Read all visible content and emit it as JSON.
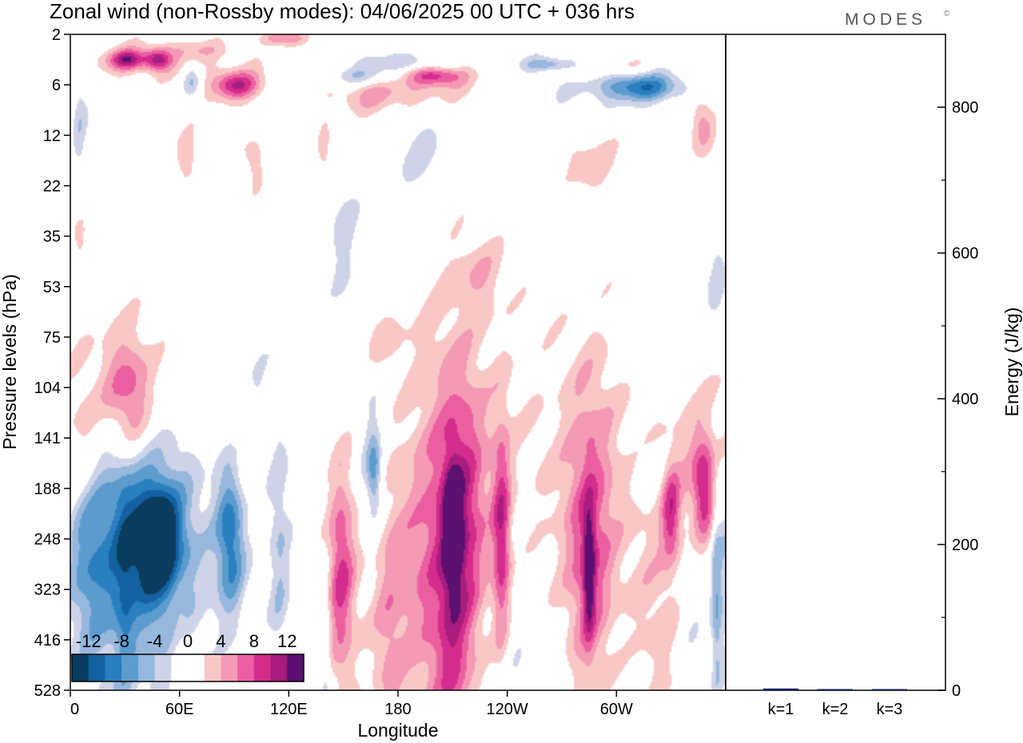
{
  "header": {
    "title": "Zonal wind (non-Rossby modes):  04/06/2025  00 UTC  + 036 hrs",
    "logo": "MODES",
    "logo_mark": "©"
  },
  "chart_data": [
    {
      "type": "heatmap",
      "name": "zonal-wind-section",
      "title": "Zonal wind (non-Rossby modes):  04/06/2025  00 UTC  + 036 hrs",
      "xlabel": "Longitude",
      "ylabel": "Pressure levels (hPa)",
      "x_ticks": [
        "0",
        "60E",
        "120E",
        "180",
        "120W",
        "60W"
      ],
      "x_tick_lon": [
        0,
        60,
        120,
        180,
        240,
        300
      ],
      "xlim": [
        0,
        360
      ],
      "y_ticks": [
        "2",
        "6",
        "12",
        "22",
        "35",
        "53",
        "75",
        "104",
        "141",
        "188",
        "248",
        "323",
        "416",
        "528"
      ],
      "y_reversed": true,
      "colorbar": {
        "labels": [
          "-12",
          "-8",
          "-4",
          "0",
          "4",
          "8",
          "12"
        ],
        "levels": [
          -14,
          -12,
          -10,
          -8,
          -6,
          -4,
          -2,
          0,
          2,
          4,
          6,
          8,
          10,
          12,
          14
        ],
        "colors": [
          "#0b3c5d",
          "#1361a0",
          "#2a7fbf",
          "#5b9bcd",
          "#97b7dc",
          "#cfd3e7",
          "#ffffff",
          "#ffffff",
          "#f9c8c6",
          "#f49ab5",
          "#eb5fa0",
          "#d42c8c",
          "#a71c7d",
          "#5c1070"
        ]
      },
      "blobs": [
        {
          "lon": 31,
          "lev": 2,
          "dlon": 9,
          "dlev": 0.18,
          "v": 8
        },
        {
          "lon": 48,
          "lev": 2,
          "dlon": 7,
          "dlev": 0.2,
          "v": 8
        },
        {
          "lon": 38,
          "lev": 2.1,
          "dlon": 28,
          "dlev": 0.35,
          "v": 4
        },
        {
          "lon": 70,
          "lev": 1.2,
          "dlon": 20,
          "dlev": 0.2,
          "v": 3
        },
        {
          "lon": 117,
          "lev": 0.3,
          "dlon": 12,
          "dlev": 0.15,
          "v": 6
        },
        {
          "lon": 91,
          "lev": 4,
          "dlon": 12,
          "dlev": 0.25,
          "v": 7
        },
        {
          "lon": 91,
          "lev": 4,
          "dlon": 22,
          "dlev": 0.5,
          "v": 3
        },
        {
          "lon": 67,
          "lev": 3.7,
          "dlon": 5,
          "dlev": 0.3,
          "v": -5
        },
        {
          "lon": 160,
          "lev": 3.4,
          "dlon": 22,
          "dlev": 0.2,
          "v": -5
        },
        {
          "lon": 185,
          "lev": 2.3,
          "dlon": 25,
          "dlev": 0.2,
          "v": -5
        },
        {
          "lon": 190,
          "lev": 4,
          "dlon": 40,
          "dlev": 0.4,
          "v": 3
        },
        {
          "lon": 200,
          "lev": 3.2,
          "dlon": 15,
          "dlev": 0.2,
          "v": 8
        },
        {
          "lon": 165,
          "lev": 5,
          "dlon": 25,
          "dlev": 0.4,
          "v": 3
        },
        {
          "lon": 265,
          "lev": 2.4,
          "dlon": 16,
          "dlev": 0.15,
          "v": -6
        },
        {
          "lon": 315,
          "lev": 4.2,
          "dlon": 20,
          "dlev": 0.25,
          "v": -7
        },
        {
          "lon": 300,
          "lev": 4,
          "dlon": 40,
          "dlev": 0.5,
          "v": -3
        },
        {
          "lon": 295,
          "lev": 2.5,
          "dlon": 25,
          "dlev": 0.2,
          "v": 4
        },
        {
          "lon": 275,
          "lev": 3.2,
          "dlon": 10,
          "dlev": 0.15,
          "v": 3
        },
        {
          "lon": 345,
          "lev": 6,
          "dlon": 6,
          "dlev": 0.5,
          "v": 3
        },
        {
          "lon": 5,
          "lev": 7,
          "dlon": 4,
          "dlev": 1.2,
          "v": -3
        },
        {
          "lon": 65,
          "lev": 10,
          "dlon": 8,
          "dlev": 0.6,
          "v": 3
        },
        {
          "lon": 100,
          "lev": 10,
          "dlon": 8,
          "dlev": 0.6,
          "v": 3
        },
        {
          "lon": 140,
          "lev": 10,
          "dlon": 4,
          "dlev": 0.8,
          "v": 3
        },
        {
          "lon": 195,
          "lev": 10,
          "dlon": 15,
          "dlev": 0.9,
          "v": -3
        },
        {
          "lon": 285,
          "lev": 10,
          "dlon": 15,
          "dlev": 0.7,
          "v": 3
        },
        {
          "lon": 350,
          "lev": 8.5,
          "dlon": 7,
          "dlev": 0.6,
          "v": 3
        },
        {
          "lon": 150,
          "lev": 16,
          "dlon": 8,
          "dlev": 1.4,
          "v": -3
        },
        {
          "lon": 225,
          "lev": 19,
          "dlon": 14,
          "dlev": 0.8,
          "v": 3
        },
        {
          "lon": 355,
          "lev": 19,
          "dlon": 6,
          "dlev": 1.2,
          "v": -3
        },
        {
          "lon": 6,
          "lev": 17,
          "dlon": 5,
          "dlev": 0.6,
          "v": 3
        },
        {
          "lon": 170,
          "lev": 24,
          "dlon": 15,
          "dlev": 0.6,
          "v": 3
        },
        {
          "lon": 25,
          "lev": 28,
          "dlon": 30,
          "dlev": 1.5,
          "v": 3
        },
        {
          "lon": 32,
          "lev": 29,
          "dlon": 12,
          "dlev": 1.2,
          "v": 6
        },
        {
          "lon": 8,
          "lev": 33,
          "dlon": 8,
          "dlev": 1.2,
          "v": 3
        },
        {
          "lon": 100,
          "lev": 29,
          "dlon": 10,
          "dlev": 1,
          "v": -3
        },
        {
          "lon": 95,
          "lev": 31,
          "dlon": 8,
          "dlev": 1.2,
          "v": 3
        },
        {
          "lon": 165,
          "lev": 34,
          "dlon": 8,
          "dlev": 2,
          "v": -3
        },
        {
          "lon": 167,
          "lev": 35,
          "dlon": 4,
          "dlev": 0.8,
          "v": -6
        },
        {
          "lon": 318,
          "lev": 35,
          "dlon": 8,
          "dlev": 0.6,
          "v": -3
        },
        {
          "lon": 345,
          "lev": 35.5,
          "dlon": 14,
          "dlev": 1.6,
          "v": 4
        },
        {
          "lon": 348,
          "lev": 36,
          "dlon": 6,
          "dlev": 1,
          "v": 7
        },
        {
          "lon": 330,
          "lev": 38,
          "dlon": 5,
          "dlev": 0.9,
          "v": 7
        },
        {
          "lon": 230,
          "lev": 39,
          "dlon": 40,
          "dlev": 4,
          "v": 3
        },
        {
          "lon": 290,
          "lev": 40,
          "dlon": 28,
          "dlev": 4,
          "v": 3
        },
        {
          "lon": 180,
          "lev": 42,
          "dlon": 25,
          "dlev": 2.5,
          "v": 3
        },
        {
          "lon": 150,
          "lev": 43,
          "dlon": 8,
          "dlev": 2.5,
          "v": 3
        },
        {
          "lon": 42,
          "lev": 40,
          "dlon": 35,
          "dlev": 2,
          "v": -4
        },
        {
          "lon": 48,
          "lev": 40,
          "dlon": 12,
          "dlev": 1,
          "v": -13
        },
        {
          "lon": 25,
          "lev": 41,
          "dlon": 22,
          "dlev": 2.5,
          "v": -6
        },
        {
          "lon": 88,
          "lev": 40,
          "dlon": 8,
          "dlev": 1.5,
          "v": -9
        },
        {
          "lon": 115,
          "lev": 41,
          "dlon": 6,
          "dlev": 2.5,
          "v": -4
        },
        {
          "lon": 8,
          "lev": 42,
          "dlon": 10,
          "dlev": 2,
          "v": -3
        },
        {
          "lon": 55,
          "lev": 44,
          "dlon": 18,
          "dlev": 3,
          "v": -3
        },
        {
          "lon": 215,
          "lev": 38.5,
          "dlon": 13,
          "dlev": 3,
          "v": 7
        },
        {
          "lon": 210,
          "lev": 39,
          "dlon": 5,
          "dlev": 1.2,
          "v": 9
        },
        {
          "lon": 237,
          "lev": 40.5,
          "dlon": 5,
          "dlev": 2.2,
          "v": 9
        },
        {
          "lon": 285,
          "lev": 42,
          "dlon": 13,
          "dlev": 3.3,
          "v": 7
        },
        {
          "lon": 285,
          "lev": 42.5,
          "dlon": 3,
          "dlev": 1.2,
          "v": 9
        },
        {
          "lon": 148,
          "lev": 43,
          "dlon": 7,
          "dlev": 2,
          "v": 5
        },
        {
          "lon": 200,
          "lev": 45,
          "dlon": 15,
          "dlev": 6,
          "v": 3
        },
        {
          "lon": 240,
          "lev": 47,
          "dlon": 15,
          "dlev": 3,
          "v": -3
        },
        {
          "lon": 325,
          "lev": 45,
          "dlon": 20,
          "dlev": 3,
          "v": 3
        },
        {
          "lon": 340,
          "lev": 44,
          "dlon": 8,
          "dlev": 2,
          "v": -3
        },
        {
          "lon": 60,
          "lev": 51,
          "dlon": 6,
          "dlev": 2,
          "v": 3
        },
        {
          "lon": 285,
          "lev": 51,
          "dlon": 30,
          "dlev": 4,
          "v": -3
        },
        {
          "lon": 355,
          "lev": 45,
          "dlon": 3,
          "dlev": 2,
          "v": -5
        },
        {
          "lon": 210,
          "lev": 50,
          "dlon": 8,
          "dlev": 2,
          "v": 3
        },
        {
          "lon": 175,
          "lev": 51,
          "dlon": 8,
          "dlev": 2.5,
          "v": 3
        },
        {
          "lon": 140,
          "lev": 49,
          "dlon": 3,
          "dlev": 1.5,
          "v": -3
        },
        {
          "lon": 30,
          "lev": 47,
          "dlon": 5,
          "dlev": 3,
          "v": -3
        }
      ]
    },
    {
      "type": "bar",
      "name": "energy-spectrum",
      "categories": [
        "k=1",
        "k=2",
        "k=3"
      ],
      "values": [
        6,
        3,
        2
      ],
      "ylabel": "Energy (J/kg)",
      "ylim": [
        0,
        900
      ],
      "y_ticks": [
        "0",
        "200",
        "400",
        "600",
        "800"
      ],
      "y_tick_values": [
        0,
        200,
        400,
        600,
        800
      ],
      "bar_color": "#0b1a66"
    }
  ]
}
